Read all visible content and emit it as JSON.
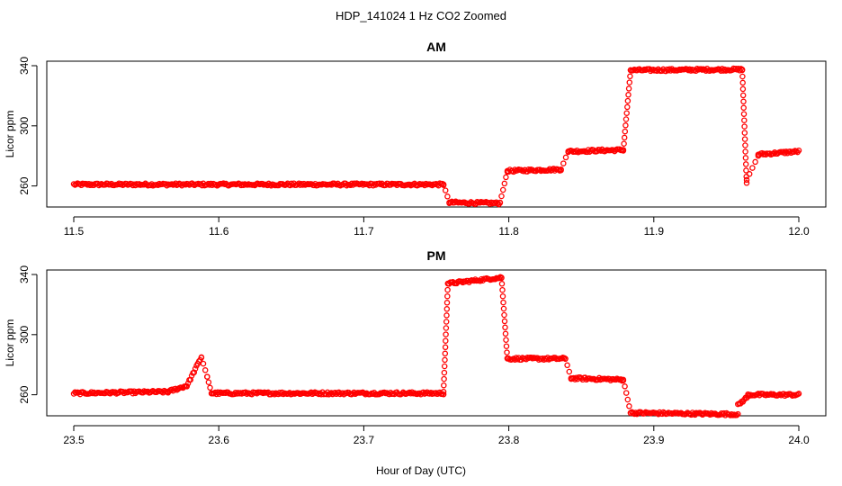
{
  "chart_title": "HDP_141024  1 Hz CO2 Zoomed",
  "x_axis_label": "Hour of Day (UTC)",
  "point_color": "#ff0000",
  "chart_data": [
    {
      "type": "scatter",
      "title": "AM",
      "xlabel": "",
      "ylabel": "Licor ppm",
      "xlim": [
        11.5,
        12.0
      ],
      "ylim": [
        246,
        343
      ],
      "xticks": [
        11.5,
        11.6,
        11.7,
        11.8,
        11.9,
        12.0
      ],
      "xtick_labels": [
        "11.5",
        "11.6",
        "11.7",
        "11.8",
        "11.9",
        "12.0"
      ],
      "yticks": [
        260,
        300,
        340
      ],
      "ytick_labels": [
        "260",
        "300",
        "340"
      ],
      "grid": false,
      "marker": "open circle",
      "segments": [
        {
          "x": [
            11.5,
            11.755
          ],
          "y": [
            261,
            261
          ]
        },
        {
          "x": [
            11.755,
            11.759
          ],
          "y": [
            261,
            249
          ]
        },
        {
          "x": [
            11.759,
            11.794
          ],
          "y": [
            249,
            248.5
          ]
        },
        {
          "x": [
            11.794,
            11.799
          ],
          "y": [
            249,
            270
          ]
        },
        {
          "x": [
            11.799,
            11.836
          ],
          "y": [
            270,
            271
          ]
        },
        {
          "x": [
            11.836,
            11.841
          ],
          "y": [
            271,
            283
          ]
        },
        {
          "x": [
            11.841,
            11.879
          ],
          "y": [
            283,
            284
          ]
        },
        {
          "x": [
            11.879,
            11.884
          ],
          "y": [
            284,
            337
          ]
        },
        {
          "x": [
            11.884,
            11.961
          ],
          "y": [
            337,
            337.5
          ]
        },
        {
          "x": [
            11.961,
            11.964
          ],
          "y": [
            337,
            262
          ]
        },
        {
          "x": [
            11.964,
            11.972
          ],
          "y": [
            264,
            280
          ]
        },
        {
          "x": [
            11.972,
            12.0
          ],
          "y": [
            281,
            283
          ]
        }
      ]
    },
    {
      "type": "scatter",
      "title": "PM",
      "xlabel": "Hour of Day (UTC)",
      "ylabel": "Licor ppm",
      "xlim": [
        23.5,
        24.0
      ],
      "ylim": [
        246,
        343
      ],
      "xticks": [
        23.5,
        23.6,
        23.7,
        23.8,
        23.9,
        24.0
      ],
      "xtick_labels": [
        "23.5",
        "23.6",
        "23.7",
        "23.8",
        "23.9",
        "24.0"
      ],
      "yticks": [
        260,
        300,
        340
      ],
      "ytick_labels": [
        "260",
        "300",
        "340"
      ],
      "grid": false,
      "marker": "open circle",
      "segments": [
        {
          "x": [
            23.5,
            23.565
          ],
          "y": [
            261,
            262
          ]
        },
        {
          "x": [
            23.565,
            23.578
          ],
          "y": [
            262,
            266
          ]
        },
        {
          "x": [
            23.578,
            23.588
          ],
          "y": [
            266,
            285
          ]
        },
        {
          "x": [
            23.588,
            23.592
          ],
          "y": [
            285,
            272
          ]
        },
        {
          "x": [
            23.592,
            23.595
          ],
          "y": [
            272,
            261
          ]
        },
        {
          "x": [
            23.595,
            23.755
          ],
          "y": [
            261,
            261
          ]
        },
        {
          "x": [
            23.755,
            23.758
          ],
          "y": [
            262,
            334
          ]
        },
        {
          "x": [
            23.758,
            23.795
          ],
          "y": [
            334,
            338
          ]
        },
        {
          "x": [
            23.795,
            23.799
          ],
          "y": [
            338,
            284
          ]
        },
        {
          "x": [
            23.799,
            23.839
          ],
          "y": [
            284,
            284
          ]
        },
        {
          "x": [
            23.839,
            23.843
          ],
          "y": [
            284,
            271
          ]
        },
        {
          "x": [
            23.843,
            23.879
          ],
          "y": [
            271,
            270
          ]
        },
        {
          "x": [
            23.879,
            23.884
          ],
          "y": [
            270,
            248
          ]
        },
        {
          "x": [
            23.884,
            23.958
          ],
          "y": [
            248,
            247
          ]
        },
        {
          "x": [
            23.958,
            23.965
          ],
          "y": [
            253,
            259
          ]
        },
        {
          "x": [
            23.965,
            24.0
          ],
          "y": [
            260,
            260
          ]
        }
      ]
    }
  ]
}
